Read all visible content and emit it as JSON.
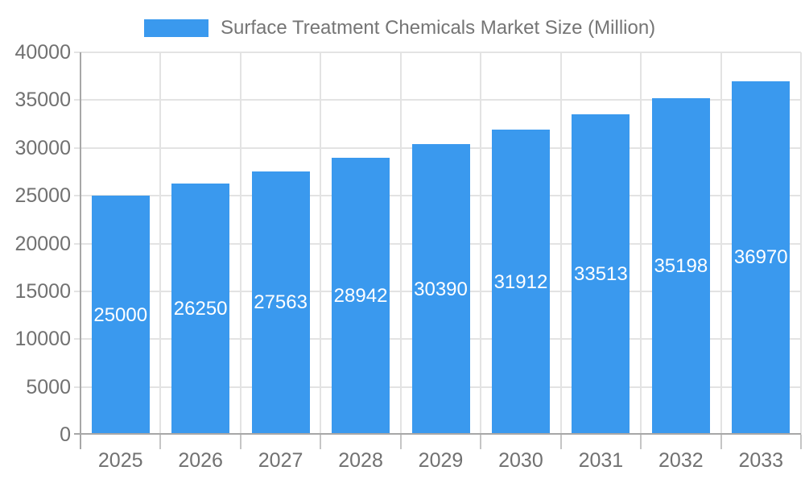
{
  "chart_data": {
    "type": "bar",
    "title": "Surface Treatment Chemicals Market Size (Million)",
    "legend": {
      "position": "top",
      "label": "Surface Treatment Chemicals Market Size (Million)"
    },
    "categories": [
      "2025",
      "2026",
      "2027",
      "2028",
      "2029",
      "2030",
      "2031",
      "2032",
      "2033"
    ],
    "values": [
      25000,
      26250,
      27563,
      28942,
      30390,
      31912,
      33513,
      35198,
      36970
    ],
    "value_labels": "inside-center",
    "xlabel": "",
    "ylabel": "",
    "ylim": [
      0,
      40000
    ],
    "ytick_step": 5000,
    "yticks": [
      0,
      5000,
      10000,
      15000,
      20000,
      25000,
      30000,
      35000,
      40000
    ],
    "grid": "horizontal-and-vertical-category-boundaries"
  },
  "colors": {
    "bar": "#3A99EE",
    "grid": "#E3E3E3",
    "boundary_tick": "#C5C5C5",
    "axis": "#A7A7A7",
    "tick_text": "#717171",
    "legend_text": "#757575",
    "value_label_text": "#FFFFFF",
    "background": "#FFFFFF"
  }
}
